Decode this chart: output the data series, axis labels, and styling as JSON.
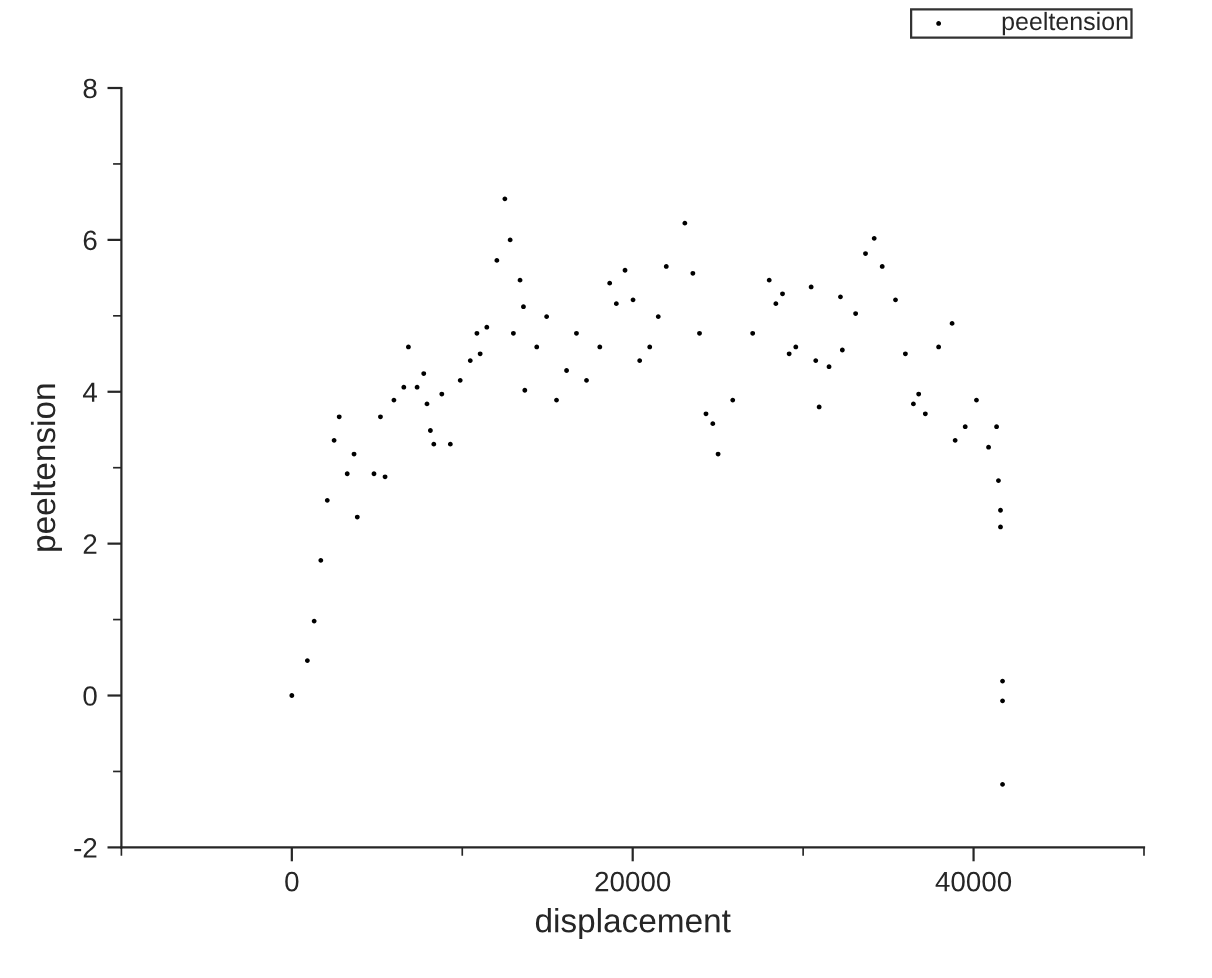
{
  "chart_data": {
    "type": "scatter",
    "xlabel": "displacement",
    "ylabel": "peeltension",
    "xlim": [
      -10000,
      50000
    ],
    "xticks": [
      0,
      20000,
      40000
    ],
    "ylim": [
      -2,
      8
    ],
    "yticks": [
      -2,
      0,
      2,
      4,
      6,
      8
    ],
    "grid": false,
    "legend": "top right",
    "marker": "circle",
    "series": [
      {
        "name": "peeltension",
        "color": "#000000",
        "x": [
          0,
          912,
          1310,
          1700,
          2080,
          2480,
          2780,
          3250,
          3650,
          3840,
          4820,
          5200,
          5470,
          5990,
          6570,
          6840,
          7350,
          7740,
          7930,
          8130,
          8330,
          8800,
          9300,
          9880,
          10470,
          10860,
          11050,
          11440,
          12030,
          12500,
          12810,
          13000,
          13390,
          13590,
          13670,
          14370,
          14950,
          15530,
          16120,
          16700,
          17290,
          18070,
          18650,
          19040,
          19550,
          20020,
          20410,
          21000,
          21500,
          21970,
          23060,
          23530,
          23920,
          24300,
          24700,
          25010,
          25870,
          27040,
          28010,
          28400,
          28790,
          29180,
          29570,
          30470,
          30740,
          30940,
          31520,
          32190,
          32300,
          33080,
          33660,
          34170,
          34640,
          35420,
          36000,
          36470,
          36780,
          37170,
          37950,
          38740,
          38920,
          39510,
          40170,
          40880,
          41350,
          41460,
          41580,
          41580,
          41700,
          41700,
          41700
        ],
        "values": [
          0,
          0.46,
          0.98,
          1.78,
          2.57,
          3.36,
          3.67,
          2.92,
          3.18,
          2.35,
          2.92,
          3.67,
          2.88,
          3.89,
          4.06,
          4.59,
          4.06,
          4.24,
          3.84,
          3.49,
          3.31,
          3.97,
          3.31,
          4.15,
          4.41,
          4.77,
          4.5,
          4.85,
          5.73,
          6.54,
          6.0,
          4.77,
          5.47,
          5.12,
          4.02,
          4.59,
          4.99,
          3.89,
          4.28,
          4.77,
          4.15,
          4.59,
          5.43,
          5.16,
          5.6,
          5.21,
          4.41,
          4.59,
          4.99,
          5.65,
          6.22,
          5.56,
          4.77,
          3.71,
          3.58,
          3.18,
          3.89,
          4.77,
          5.47,
          5.16,
          5.29,
          4.5,
          4.59,
          5.38,
          4.41,
          3.8,
          4.33,
          5.25,
          4.55,
          5.03,
          5.82,
          6.02,
          5.65,
          5.21,
          4.5,
          3.84,
          3.97,
          3.71,
          4.59,
          4.9,
          3.36,
          3.54,
          3.89,
          3.27,
          3.54,
          2.83,
          2.44,
          2.22,
          0.19,
          -0.07,
          -1.17
        ]
      }
    ]
  }
}
